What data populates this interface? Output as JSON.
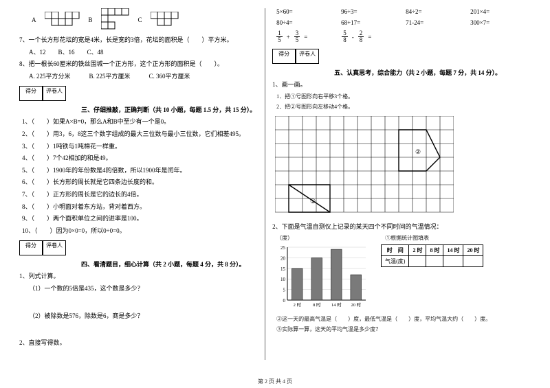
{
  "colors": {
    "text": "#000000",
    "bg": "#ffffff",
    "divider": "#666666",
    "gridStroke": "#000000",
    "shapeFill": "#ffffff",
    "barFill": "#7a7a7a",
    "barChartGrid": "#cccccc"
  },
  "left": {
    "shapes": {
      "labels": [
        "A",
        "B",
        "C"
      ]
    },
    "q7": "7、一个长方形花坛的宽是4米，长是宽的3倍，花坛的面积是（　　）平方米。",
    "q7opts": "A、12　　B、16　　C、48",
    "q8": "8、把一根长60厘米的铁丝围城一个正方形，这个正方形的面积是（　　）。",
    "q8opts": "A. 225平方分米　　　B. 225平方厘米　　　C. 360平方厘米",
    "scoreLabels": {
      "a": "得分",
      "b": "评卷人"
    },
    "sec3": "三、仔细推敲，正确判断（共 10 小题，每题 1.5 分，共 15 分）。",
    "judge": [
      "1、（　　）如果A×B=0，那么A和B中至少有一个是0。",
      "2、（　　）用3，6，8这三个数字组成的最大三位数与最小三位数，它们相差495。",
      "3、（　　）1吨铁与1吨棉花一样重。",
      "4、（　　）7个42相加的和是49。",
      "5、（　　）1900年的年份数是4的倍数，所以1900年是闰年。",
      "6、（　　）长方形的周长就是它四条边长度的和。",
      "7、（　　）正方形的周长是它的边长的4倍。",
      "8、（　　）小明面对着东方站，背对着西方。",
      "9、（　　）两个面积单位之间的进率是100。",
      "10、（　　）因为0×0=0，所以0÷0=0。"
    ],
    "sec4": "四、看清题目，细心计算（共 2 小题，每题 4 分，共 8 分）。",
    "calc_head": "1、列式计算。",
    "calc1": "（1）一个数的5倍是435，这个数是多少？",
    "calc2": "（2）被除数是576，除数是6，商是多少？",
    "calc_bottom": "2、直接写得数。"
  },
  "right": {
    "arith": [
      [
        "5×60=",
        "96÷3=",
        "84÷2=",
        "201×4="
      ],
      [
        "80÷4=",
        "68+17=",
        "71-24=",
        "300×7="
      ]
    ],
    "fracs": {
      "a": {
        "n1": "1",
        "d1": "5",
        "op": "+",
        "n2": "3",
        "d2": "5",
        "eq": "="
      },
      "b": {
        "n1": "5",
        "d1": "8",
        "op": "-",
        "n2": "2",
        "d2": "8",
        "eq": "="
      }
    },
    "sec5": "五、认真思考，综合能力（共 2 小题，每题 7 分，共 14 分）。",
    "q1": "1、画一画。",
    "q1a": "1．把①号图形向右平移3个格。",
    "q1b": "2．把②号图形向左移动4个格。",
    "gridLabels": {
      "one": "①",
      "two": "②"
    },
    "q2": "2、下面是气温自测仪上记录的某天四个不同时间的气温情况：",
    "chart": {
      "ylabel": "（度）",
      "caption": "①根据统计图填表",
      "yticks": [
        "25",
        "20",
        "15",
        "10",
        "5",
        "0"
      ],
      "xticks": [
        "2 时",
        "8 时",
        "14 时",
        "20 时"
      ],
      "bars": [
        15,
        20,
        24,
        12
      ],
      "ymax": 25
    },
    "table": {
      "head": [
        "时　间",
        "2 时",
        "8 时",
        "14 时",
        "20 时"
      ],
      "rowLabel": "气温(度)"
    },
    "tail1": "②这一天的最高气温是（　　）度，最低气温是（　　）度，平均气温大约（　　）度。",
    "tail2": "③实际算一算，这天的平均气温是多少度？"
  },
  "footer": "第 2 页 共 4 页"
}
